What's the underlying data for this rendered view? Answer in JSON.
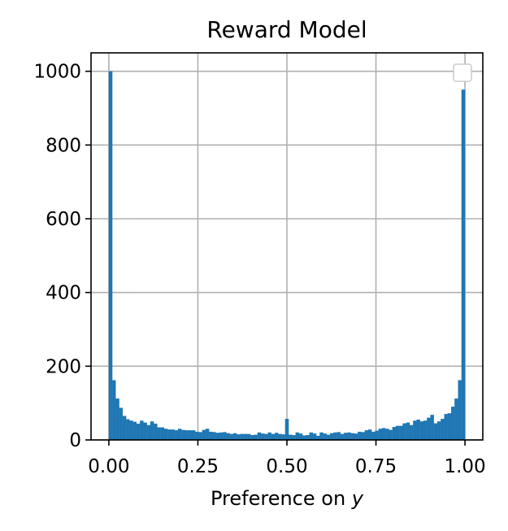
{
  "chart_data": {
    "type": "bar",
    "title": "Reward Model",
    "xlabel": "Preference on",
    "xlabel_var": "y",
    "ylabel": "",
    "xlim": [
      -0.05,
      1.05
    ],
    "ylim": [
      0,
      1050
    ],
    "grid": true,
    "legend": "top-right (empty)",
    "color": "#1f77b4",
    "xticks": [
      "0.00",
      "0.25",
      "0.50",
      "0.75",
      "1.00"
    ],
    "xtick_values": [
      0,
      0.25,
      0.5,
      0.75,
      1.0
    ],
    "yticks": [
      "0",
      "200",
      "400",
      "600",
      "800",
      "1000"
    ],
    "ytick_values": [
      0,
      200,
      400,
      600,
      800,
      1000
    ],
    "bin_width": 0.01,
    "bin_start": 0.0,
    "values": [
      1000,
      162,
      112,
      87,
      65,
      56,
      52,
      49,
      44,
      52,
      47,
      40,
      50,
      44,
      34,
      34,
      30,
      28,
      28,
      26,
      30,
      27,
      26,
      26,
      26,
      22,
      21,
      27,
      30,
      22,
      21,
      19,
      20,
      21,
      18,
      16,
      18,
      15,
      16,
      16,
      16,
      13,
      14,
      20,
      17,
      16,
      20,
      16,
      19,
      16,
      15,
      57,
      14,
      13,
      20,
      17,
      12,
      13,
      20,
      17,
      11,
      20,
      17,
      14,
      18,
      20,
      21,
      16,
      19,
      20,
      18,
      17,
      22,
      21,
      26,
      28,
      22,
      25,
      30,
      32,
      30,
      27,
      35,
      38,
      38,
      45,
      47,
      40,
      52,
      55,
      50,
      52,
      60,
      68,
      45,
      50,
      57,
      70,
      72,
      90,
      112,
      162,
      950
    ]
  }
}
